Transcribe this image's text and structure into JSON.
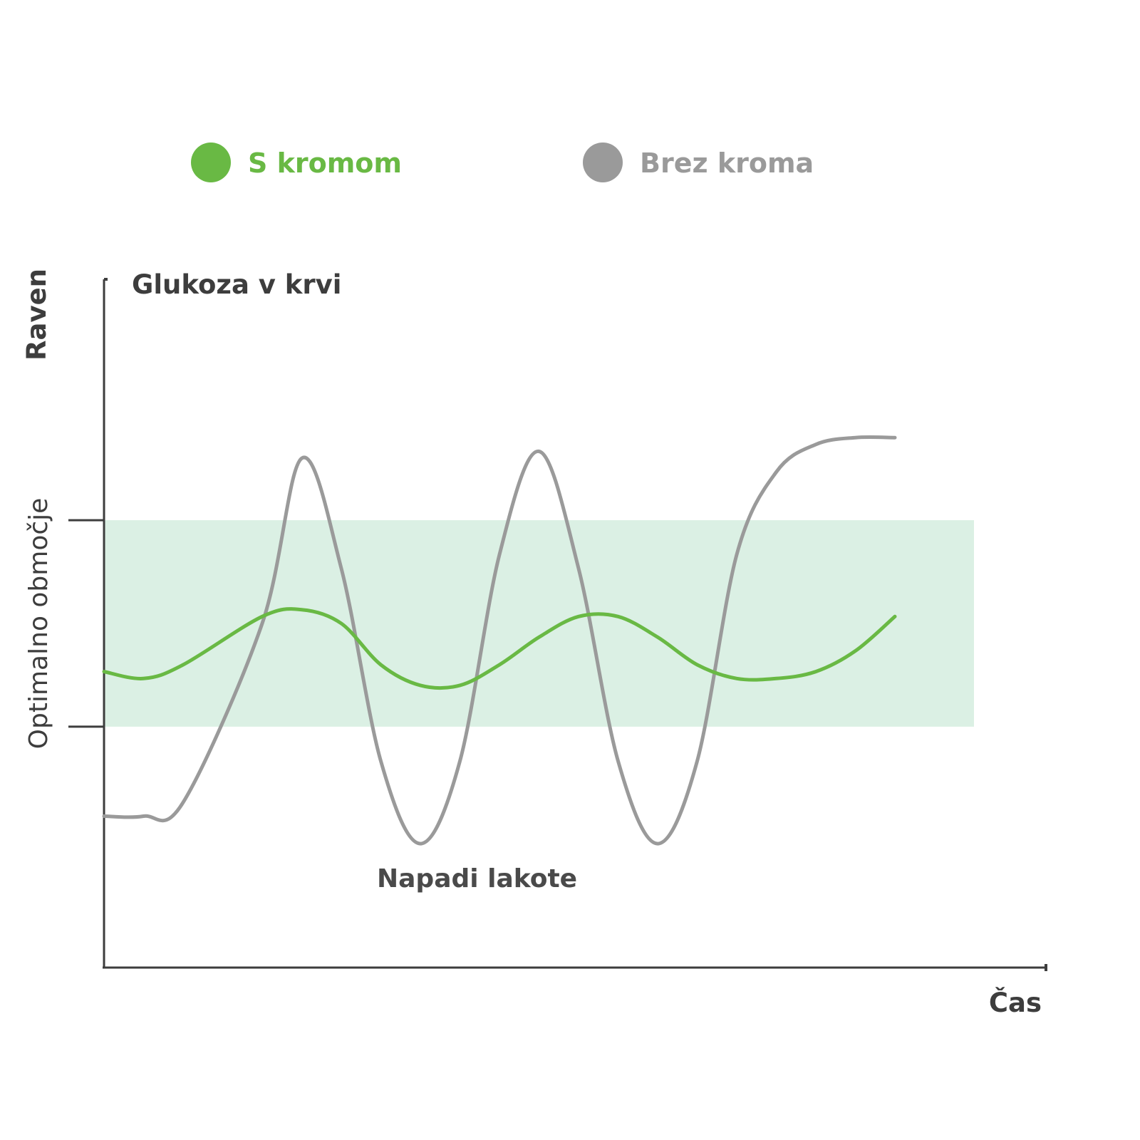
{
  "chart_data": {
    "type": "line",
    "title": "Glukoza v krvi",
    "xlabel": "Čas",
    "ylabel": "Raven",
    "band_label": "Optimalno območje",
    "annotation": "Napadi lakote",
    "x": [
      0,
      0.5,
      1,
      2,
      2.5,
      3,
      3.5,
      4,
      4.5,
      5,
      5.5,
      6,
      6.5,
      7,
      7.5,
      8,
      8.5,
      9,
      9.5,
      10
    ],
    "band": {
      "low": 0.35,
      "high": 0.65
    },
    "ylim": [
      0,
      1
    ],
    "xlim": [
      0,
      11
    ],
    "series": [
      {
        "name": "S kromom",
        "color": "#69b944",
        "values": [
          0.43,
          0.42,
          0.44,
          0.51,
          0.52,
          0.5,
          0.44,
          0.41,
          0.41,
          0.44,
          0.48,
          0.51,
          0.51,
          0.48,
          0.44,
          0.42,
          0.42,
          0.43,
          0.46,
          0.51
        ]
      },
      {
        "name": "Brez kroma",
        "color": "#9a9a9a",
        "values": [
          0.22,
          0.22,
          0.24,
          0.5,
          0.74,
          0.58,
          0.3,
          0.18,
          0.3,
          0.6,
          0.75,
          0.58,
          0.3,
          0.18,
          0.3,
          0.6,
          0.72,
          0.76,
          0.77,
          0.77
        ]
      }
    ]
  }
}
